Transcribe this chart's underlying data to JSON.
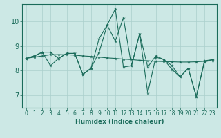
{
  "xlabel": "Humidex (Indice chaleur)",
  "xlim": [
    -0.5,
    23.5
  ],
  "ylim": [
    6.5,
    10.7
  ],
  "yticks": [
    7,
    8,
    9,
    10
  ],
  "xticks": [
    0,
    1,
    2,
    3,
    4,
    5,
    6,
    7,
    8,
    9,
    10,
    11,
    12,
    13,
    14,
    15,
    16,
    17,
    18,
    19,
    20,
    21,
    22,
    23
  ],
  "bg_color": "#cce8e5",
  "line_color": "#1a6b5a",
  "grid_color": "#aacfcc",
  "series": [
    [
      8.5,
      8.6,
      8.75,
      8.75,
      8.5,
      8.7,
      8.7,
      7.85,
      8.1,
      9.3,
      9.85,
      10.5,
      8.15,
      8.2,
      9.5,
      7.1,
      8.55,
      8.45,
      8.05,
      7.75,
      8.1,
      6.95,
      8.35,
      8.45
    ],
    [
      8.5,
      8.6,
      8.75,
      8.2,
      8.5,
      8.7,
      8.7,
      7.85,
      8.1,
      8.75,
      9.85,
      9.2,
      10.15,
      8.2,
      9.5,
      8.15,
      8.6,
      8.45,
      8.2,
      7.75,
      8.1,
      6.95,
      8.4,
      8.45
    ],
    [
      8.5,
      8.55,
      8.6,
      8.65,
      8.65,
      8.65,
      8.63,
      8.6,
      8.58,
      8.55,
      8.52,
      8.5,
      8.47,
      8.45,
      8.42,
      8.4,
      8.38,
      8.37,
      8.36,
      8.35,
      8.35,
      8.36,
      8.38,
      8.4
    ]
  ],
  "xlabel_fontsize": 6.5,
  "tick_fontsize_x": 5.5,
  "tick_fontsize_y": 7
}
